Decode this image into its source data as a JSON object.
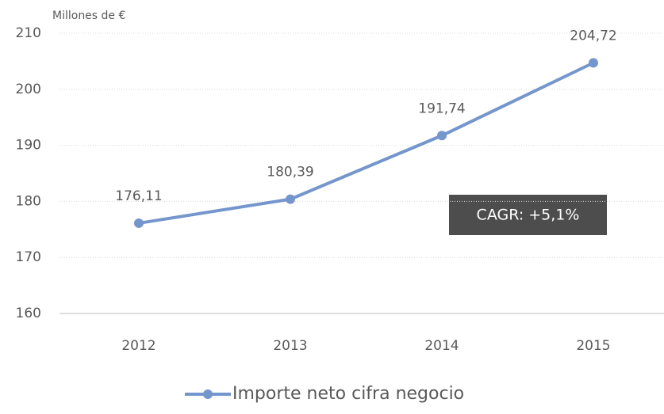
{
  "chart_data": {
    "type": "line",
    "y_axis_label": "Millones de €",
    "categories": [
      "2012",
      "2013",
      "2014",
      "2015"
    ],
    "series": [
      {
        "name": "Importe neto cifra negocio",
        "color": "#7496cc",
        "values": [
          176.11,
          180.39,
          191.74,
          204.72
        ],
        "value_labels": [
          "176,11",
          "180,39",
          "191,74",
          "204,72"
        ]
      }
    ],
    "ylim": [
      160,
      210
    ],
    "yticks": [
      160,
      170,
      180,
      190,
      200,
      210
    ],
    "grid": true,
    "annotation": "CAGR: +5,1%",
    "legend": "bottom"
  }
}
